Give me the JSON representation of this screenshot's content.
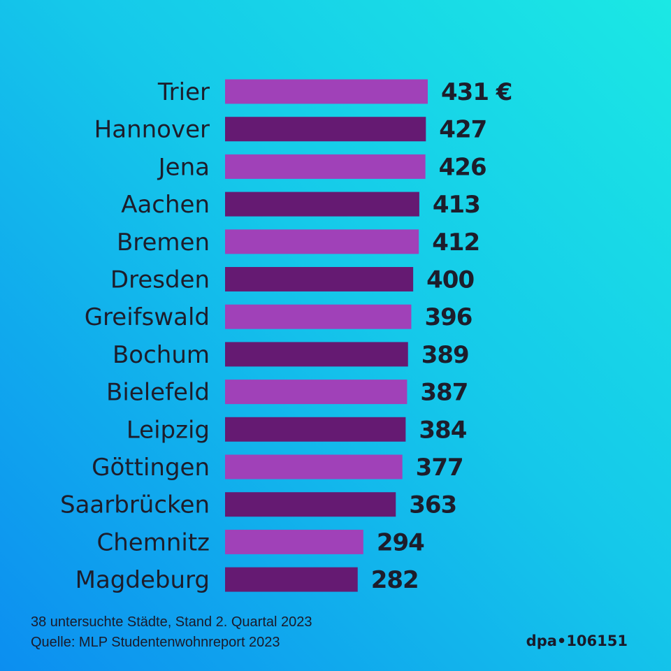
{
  "chart_data": {
    "type": "bar",
    "orientation": "horizontal",
    "categories": [
      "Trier",
      "Hannover",
      "Jena",
      "Aachen",
      "Bremen",
      "Dresden",
      "Greifswald",
      "Bochum",
      "Bielefeld",
      "Leipzig",
      "Göttingen",
      "Saarbrücken",
      "Chemnitz",
      "Magdeburg"
    ],
    "values": [
      431,
      427,
      426,
      413,
      412,
      400,
      396,
      389,
      387,
      384,
      377,
      363,
      294,
      282
    ],
    "value_labels": [
      "431 €",
      "427",
      "426",
      "413",
      "412",
      "400",
      "396",
      "389",
      "387",
      "384",
      "377",
      "363",
      "294",
      "282"
    ],
    "unit": "€",
    "xlim": [
      0,
      431
    ],
    "grid": false,
    "colors": [
      "#a041b8",
      "#651a72"
    ]
  },
  "footer": {
    "note": "38 untersuchte Städte, Stand 2. Quartal 2023",
    "source": "Quelle: MLP Studentenwohnreport 2023",
    "credit": "dpa•106151"
  }
}
